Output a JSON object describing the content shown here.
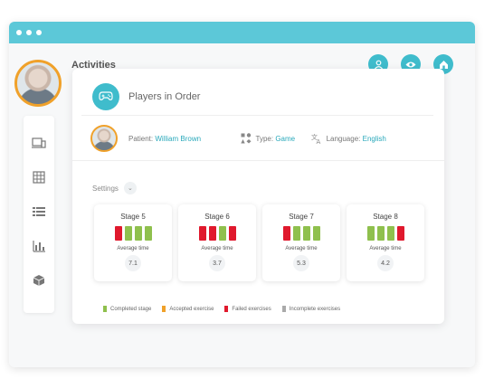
{
  "window": {
    "title": "Activities"
  },
  "colors": {
    "accent": "#3fbccc",
    "green": "#8fc04d",
    "red": "#e0192d",
    "orange": "#f0a12a",
    "gray": "#aaaaaa"
  },
  "sidebar": {
    "items": [
      {
        "icon": "devices-icon"
      },
      {
        "icon": "grid-icon"
      },
      {
        "icon": "list-icon"
      },
      {
        "icon": "bar-chart-icon"
      },
      {
        "icon": "cube-icon"
      }
    ]
  },
  "header_actions": [
    {
      "icon": "user-icon"
    },
    {
      "icon": "eye-icon"
    },
    {
      "icon": "home-icon"
    }
  ],
  "activity": {
    "title": "Players in Order",
    "patient_label": "Patient:",
    "patient_name": "William Brown",
    "type_label": "Type:",
    "type_value": "Game",
    "language_label": "Language:",
    "language_value": "English",
    "settings_label": "Settings"
  },
  "stages": [
    {
      "name": "Stage 5",
      "bars": [
        "red",
        "green",
        "green",
        "green"
      ],
      "avg_label": "Average time",
      "avg": "7.1"
    },
    {
      "name": "Stage 6",
      "bars": [
        "red",
        "red",
        "green",
        "red"
      ],
      "avg_label": "Average time",
      "avg": "3.7"
    },
    {
      "name": "Stage 7",
      "bars": [
        "red",
        "green",
        "green",
        "green"
      ],
      "avg_label": "Average time",
      "avg": "5.3"
    },
    {
      "name": "Stage 8",
      "bars": [
        "green",
        "green",
        "green",
        "red"
      ],
      "avg_label": "Average time",
      "avg": "4.2"
    }
  ],
  "legend": [
    {
      "label": "Completed stage",
      "color": "#8fc04d"
    },
    {
      "label": "Accepted exercise",
      "color": "#f0a12a"
    },
    {
      "label": "Failed exercises",
      "color": "#e0192d"
    },
    {
      "label": "Incomplete exercises",
      "color": "#aaaaaa"
    }
  ]
}
